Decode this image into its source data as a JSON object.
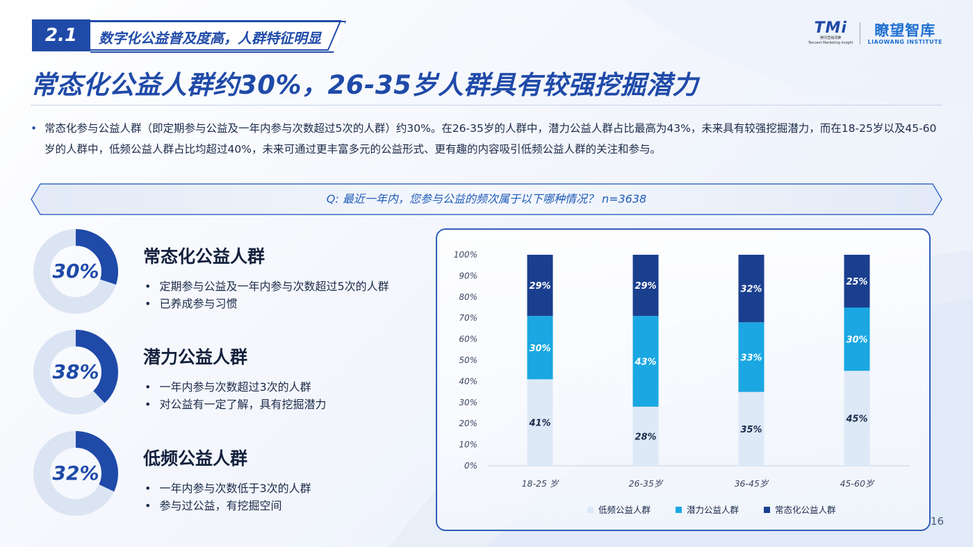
{
  "section": {
    "number": "2.1",
    "title": "数字化公益普及度高，人群特征明显"
  },
  "logo": {
    "tmi": "TMi",
    "tmi_sub": "腾讯营销洞察",
    "tmi_en": "Tencent Marketing Insight",
    "lw_cn": "瞭望智库",
    "lw_en": "LIAOWANG INSTITUTE"
  },
  "main_title": "常态化公益人群约30%，26-35岁人群具有较强挖掘潜力",
  "summary": "常态化参与公益人群（即定期参与公益及一年内参与次数超过5次的人群）约30%。在26-35岁的人群中，潜力公益人群占比最高为43%，未来具有较强挖掘潜力，而在18-25岁以及45-60岁的人群中，低频公益人群占比均超过40%，未来可通过更丰富多元的公益形式、更有趣的内容吸引低频公益人群的关注和参与。",
  "question": "Q: 最近一年内，您参与公益的频次属于以下哪种情况？ n=3638",
  "groups": [
    {
      "pct_label": "30%",
      "value": 0.3,
      "title": "常态化公益人群",
      "bullets": [
        "定期参与公益及一年内参与次数超过5次的人群",
        "已养成参与习惯"
      ]
    },
    {
      "pct_label": "38%",
      "value": 0.38,
      "title": "潜力公益人群",
      "bullets": [
        "一年内参与次数超过3次的人群",
        "对公益有一定了解，具有挖掘潜力"
      ]
    },
    {
      "pct_label": "32%",
      "value": 0.32,
      "title": "低频公益人群",
      "bullets": [
        "一年内参与次数低于3次的人群",
        "参与过公益，有挖掘空间"
      ]
    }
  ],
  "colors": {
    "primary": "#1f4aa8",
    "low": "#dde9f7",
    "potential": "#1aa7e2",
    "regular": "#1b3f8f"
  },
  "chart_data": {
    "type": "bar",
    "stacked": true,
    "categories": [
      "18-25 岁",
      "26-35岁",
      "36-45岁",
      "45-60岁"
    ],
    "series": [
      {
        "name": "低频公益人群",
        "values": [
          41,
          28,
          35,
          45
        ],
        "labels": [
          "41%",
          "28%",
          "35%",
          "45%"
        ]
      },
      {
        "name": "潜力公益人群",
        "values": [
          30,
          43,
          33,
          30
        ],
        "labels": [
          "30%",
          "43%",
          "33%",
          "30%"
        ]
      },
      {
        "name": "常态化公益人群",
        "values": [
          29,
          29,
          32,
          25
        ],
        "labels": [
          "29%",
          "29%",
          "32%",
          "25%"
        ]
      }
    ],
    "yticks": [
      "0%",
      "10%",
      "20%",
      "30%",
      "40%",
      "50%",
      "60%",
      "70%",
      "80%",
      "90%",
      "100%"
    ],
    "ylim": [
      0,
      100
    ],
    "legend_position": "bottom"
  },
  "page_number": "16"
}
